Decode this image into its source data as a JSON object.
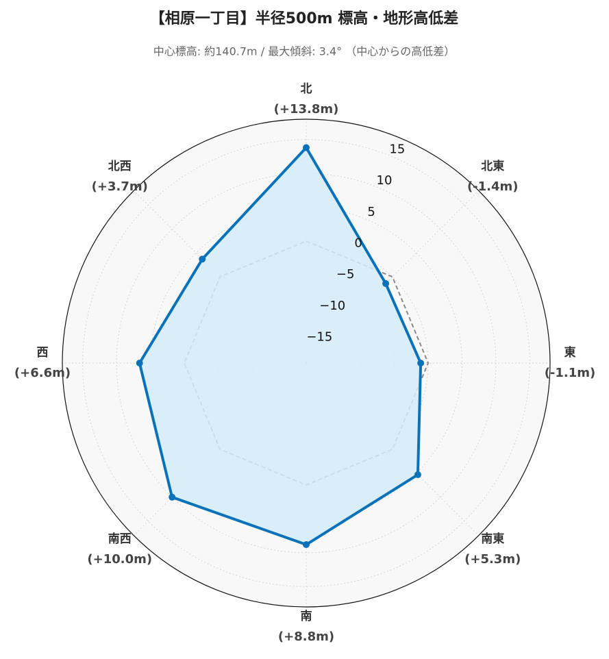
{
  "chart_data": {
    "type": "radar",
    "title": "【相原一丁目】半径500m 標高・地形高低差",
    "subtitle": "中心標高: 約140.7m / 最大傾斜: 3.4°  （中心からの高低差）",
    "categories": [
      "北",
      "北東",
      "東",
      "南東",
      "南",
      "南西",
      "西",
      "北西"
    ],
    "values": [
      13.8,
      -1.4,
      -1.1,
      5.3,
      8.8,
      10.0,
      6.6,
      3.7
    ],
    "value_labels": [
      "(+13.8m)",
      "(-1.4m)",
      "(-1.1m)",
      "(+5.3m)",
      "(+8.8m)",
      "(+10.0m)",
      "(+6.6m)",
      "(+3.7m)"
    ],
    "color": "#0b72b9",
    "fill": "#d3ecf8",
    "rlim": [
      -18,
      18
    ],
    "rticks": [
      {
        "value": -15,
        "label": "−15"
      },
      {
        "value": -10,
        "label": "−10"
      },
      {
        "value": -5,
        "label": "−5"
      },
      0,
      5,
      10,
      15
    ],
    "reference_line": {
      "value": 0,
      "color": "#888888",
      "dashed": true
    },
    "grid": true
  }
}
